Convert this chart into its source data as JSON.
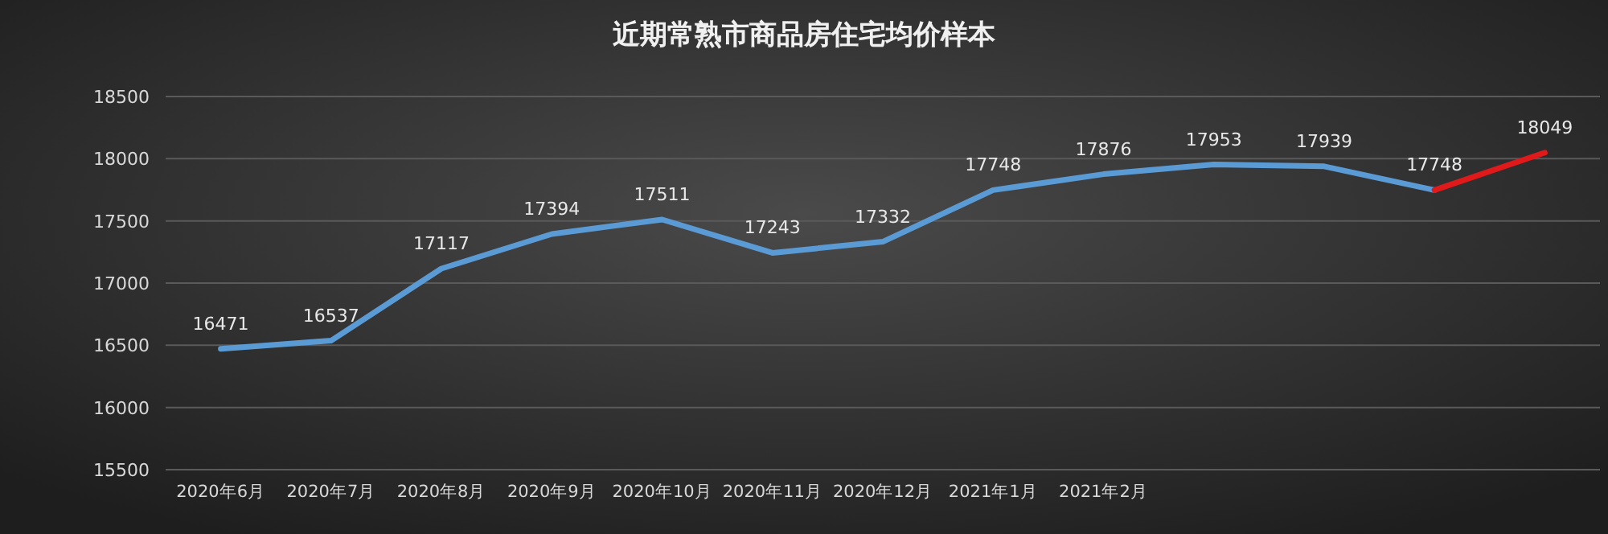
{
  "chart_data": {
    "type": "line",
    "title": "近期常熟市商品房住宅均价样本",
    "categories": [
      "2020年6月",
      "2020年7月",
      "2020年8月",
      "2020年9月",
      "2020年10月",
      "2020年11月",
      "2020年12月",
      "2021年1月",
      "2021年2月",
      null,
      null,
      null,
      null
    ],
    "series": [
      {
        "color": "#5b9bd5",
        "values": [
          16471,
          16537,
          17117,
          17394,
          17511,
          17243,
          17332,
          17748,
          17876,
          17953,
          17939,
          17748,
          null
        ],
        "value_labels": [
          "16471",
          "16537",
          "17117",
          "17394",
          "17511",
          "17243",
          "17332",
          "17748",
          "17876",
          "17953",
          "17939",
          "17748",
          null
        ]
      },
      {
        "color": "#e01a1a",
        "values": [
          null,
          null,
          null,
          null,
          null,
          null,
          null,
          null,
          null,
          null,
          null,
          17748,
          18049
        ],
        "value_labels": [
          null,
          null,
          null,
          null,
          null,
          null,
          null,
          null,
          null,
          null,
          null,
          null,
          "18049"
        ]
      }
    ],
    "ylim": [
      15500,
      18500
    ],
    "yticks": [
      15500,
      16000,
      16500,
      17000,
      17500,
      18000,
      18500
    ],
    "grid": "y",
    "marker": "none",
    "line_style": "solid"
  }
}
